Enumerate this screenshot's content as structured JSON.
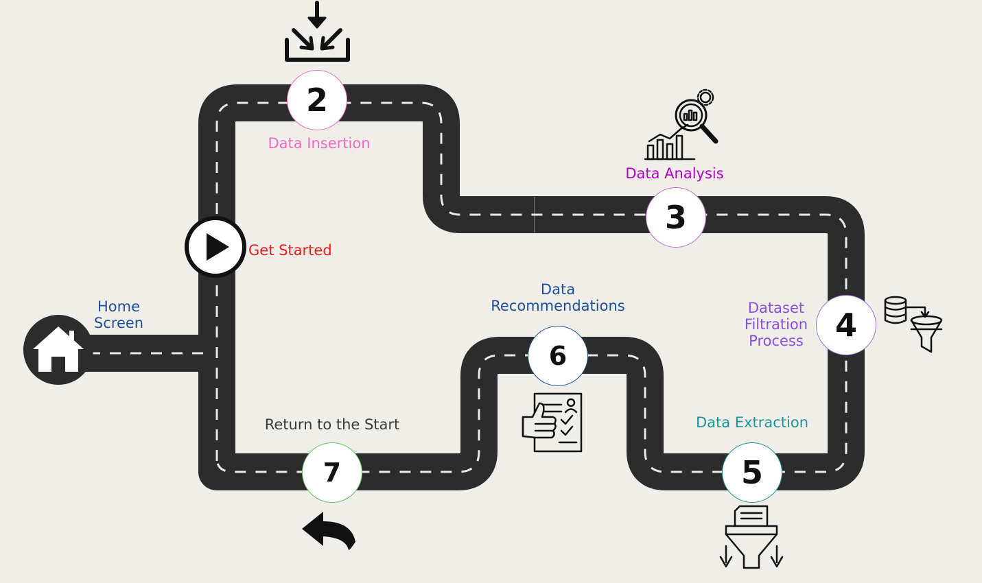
{
  "colors": {
    "background": "#efeee9",
    "road": "#2c2c2c",
    "lane": "#e9e9e9",
    "home_label": "#1f4e9c",
    "start_label": "#e8211b",
    "insertion_label": "#f06bbf",
    "analysis_label": "#b400c8",
    "filtration_label": "#8a4fe0",
    "extraction_label": "#1f9494",
    "recommendations_label": "#1f4e9c",
    "return_label": "#3a3a3a"
  },
  "home": {
    "label_line1": "Home",
    "label_line2": "Screen",
    "icon": "house-icon"
  },
  "start": {
    "label": "Get Started",
    "icon": "play-icon"
  },
  "milestones": [
    {
      "number": "2",
      "label": "Data Insertion",
      "icon": "download-tray-icon",
      "border": "#f06bbf"
    },
    {
      "number": "3",
      "label": "Data Analysis",
      "icon": "analytics-magnifier-icon",
      "border": "#c070d0"
    },
    {
      "number": "4",
      "label_line1": "Dataset",
      "label_line2": "Filtration",
      "label_line3": "Process",
      "icon": "database-funnel-icon",
      "border": "#9a70e0"
    },
    {
      "number": "5",
      "label": "Data Extraction",
      "icon": "document-funnel-icon",
      "border": "#1f9494"
    },
    {
      "number": "6",
      "label_line1": "Data",
      "label_line2": "Recommendations",
      "icon": "thumbs-up-checklist-icon",
      "border": "#1f4e9c"
    },
    {
      "number": "7",
      "label": "Return to the Start",
      "icon": "return-arrow-icon",
      "border": "#5cc45c"
    }
  ]
}
